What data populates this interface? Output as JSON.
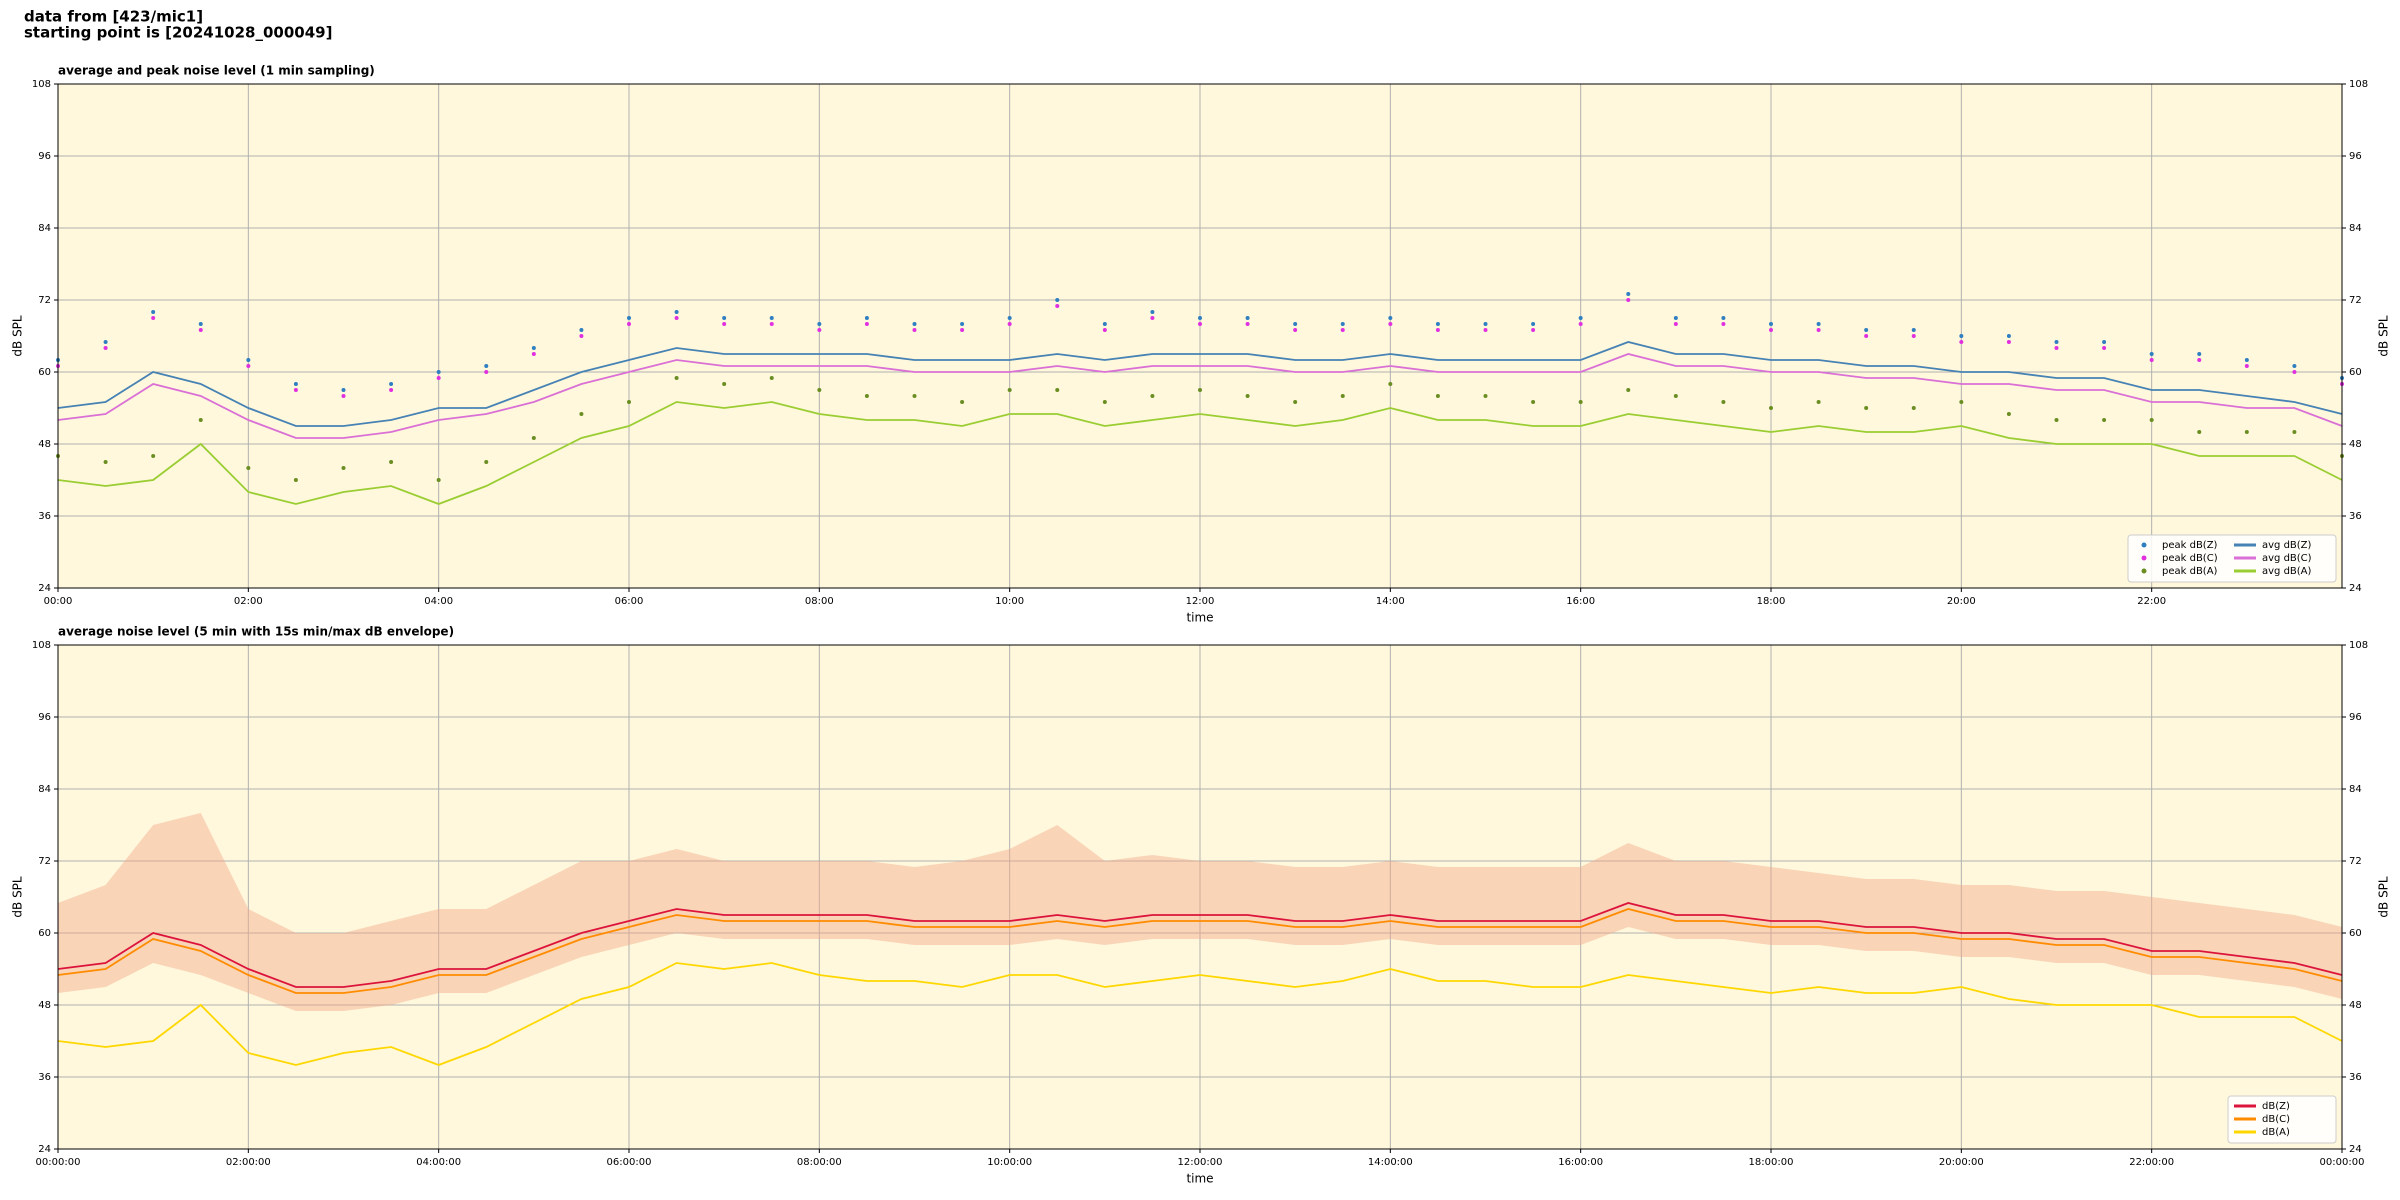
{
  "header": {
    "lines": [
      "data from [423/mic1]",
      "starting point is [20241028_000049]"
    ]
  },
  "chart_data": [
    {
      "type": "line",
      "title": "average and peak noise level (1 min sampling)",
      "xlabel": "time",
      "ylabel": "dB SPL",
      "x": [
        0,
        0.5,
        1,
        1.5,
        2,
        2.5,
        3,
        3.5,
        4,
        4.5,
        5,
        5.5,
        6,
        6.5,
        7,
        7.5,
        8,
        8.5,
        9,
        9.5,
        10,
        10.5,
        11,
        11.5,
        12,
        12.5,
        13,
        13.5,
        14,
        14.5,
        15,
        15.5,
        16,
        16.5,
        17,
        17.5,
        18,
        18.5,
        19,
        19.5,
        20,
        20.5,
        21,
        21.5,
        22,
        22.5,
        23,
        23.5,
        24
      ],
      "xlim": [
        0,
        24
      ],
      "xticks": [
        {
          "value": 0,
          "label": "00:00"
        },
        {
          "value": 2,
          "label": "02:00"
        },
        {
          "value": 4,
          "label": "04:00"
        },
        {
          "value": 6,
          "label": "06:00"
        },
        {
          "value": 8,
          "label": "08:00"
        },
        {
          "value": 10,
          "label": "10:00"
        },
        {
          "value": 12,
          "label": "12:00"
        },
        {
          "value": 14,
          "label": "14:00"
        },
        {
          "value": 16,
          "label": "16:00"
        },
        {
          "value": 18,
          "label": "18:00"
        },
        {
          "value": 20,
          "label": "20:00"
        },
        {
          "value": 22,
          "label": "22:00"
        }
      ],
      "ylim": [
        24,
        108
      ],
      "yticks": [
        24,
        36,
        48,
        60,
        72,
        84,
        96,
        108
      ],
      "grid": true,
      "legend": "lower right",
      "legend_columns": 2,
      "series": [
        {
          "name": "peak dB(Z)",
          "type": "scatter",
          "color": "#2f7fc1",
          "values": [
            62,
            65,
            70,
            68,
            62,
            58,
            57,
            58,
            60,
            61,
            64,
            67,
            69,
            70,
            69,
            69,
            68,
            69,
            68,
            68,
            69,
            72,
            68,
            70,
            69,
            69,
            68,
            68,
            69,
            68,
            68,
            68,
            69,
            73,
            69,
            69,
            68,
            68,
            67,
            67,
            66,
            66,
            65,
            65,
            63,
            63,
            62,
            61,
            59
          ]
        },
        {
          "name": "peak dB(C)",
          "type": "scatter",
          "color": "#e030e0",
          "values": [
            61,
            64,
            69,
            67,
            61,
            57,
            56,
            57,
            59,
            60,
            63,
            66,
            68,
            69,
            68,
            68,
            67,
            68,
            67,
            67,
            68,
            71,
            67,
            69,
            68,
            68,
            67,
            67,
            68,
            67,
            67,
            67,
            68,
            72,
            68,
            68,
            67,
            67,
            66,
            66,
            65,
            65,
            64,
            64,
            62,
            62,
            61,
            60,
            58
          ]
        },
        {
          "name": "peak dB(A)",
          "type": "scatter",
          "color": "#6b8e23",
          "values": [
            46,
            45,
            46,
            52,
            44,
            42,
            44,
            45,
            42,
            45,
            49,
            53,
            55,
            59,
            58,
            59,
            57,
            56,
            56,
            55,
            57,
            57,
            55,
            56,
            57,
            56,
            55,
            56,
            58,
            56,
            56,
            55,
            55,
            57,
            56,
            55,
            54,
            55,
            54,
            54,
            55,
            53,
            52,
            52,
            52,
            50,
            50,
            50,
            46
          ]
        },
        {
          "name": "avg dB(Z)",
          "type": "line",
          "color": "#4682b4",
          "values": [
            54,
            55,
            60,
            58,
            54,
            51,
            51,
            52,
            54,
            54,
            57,
            60,
            62,
            64,
            63,
            63,
            63,
            63,
            62,
            62,
            62,
            63,
            62,
            63,
            63,
            63,
            62,
            62,
            63,
            62,
            62,
            62,
            62,
            65,
            63,
            63,
            62,
            62,
            61,
            61,
            60,
            60,
            59,
            59,
            57,
            57,
            56,
            55,
            53
          ]
        },
        {
          "name": "avg dB(C)",
          "type": "line",
          "color": "#da70d6",
          "values": [
            52,
            53,
            58,
            56,
            52,
            49,
            49,
            50,
            52,
            53,
            55,
            58,
            60,
            62,
            61,
            61,
            61,
            61,
            60,
            60,
            60,
            61,
            60,
            61,
            61,
            61,
            60,
            60,
            61,
            60,
            60,
            60,
            60,
            63,
            61,
            61,
            60,
            60,
            59,
            59,
            58,
            58,
            57,
            57,
            55,
            55,
            54,
            54,
            51
          ]
        },
        {
          "name": "avg dB(A)",
          "type": "line",
          "color": "#9acd32",
          "values": [
            42,
            41,
            42,
            48,
            40,
            38,
            40,
            41,
            38,
            41,
            45,
            49,
            51,
            55,
            54,
            55,
            53,
            52,
            52,
            51,
            53,
            53,
            51,
            52,
            53,
            52,
            51,
            52,
            54,
            52,
            52,
            51,
            51,
            53,
            52,
            51,
            50,
            51,
            50,
            50,
            51,
            49,
            48,
            48,
            48,
            46,
            46,
            46,
            42
          ]
        }
      ]
    },
    {
      "type": "line",
      "title": "average noise level (5 min with 15s min/max dB envelope)",
      "xlabel": "time",
      "ylabel": "dB SPL",
      "x": [
        0,
        0.5,
        1,
        1.5,
        2,
        2.5,
        3,
        3.5,
        4,
        4.5,
        5,
        5.5,
        6,
        6.5,
        7,
        7.5,
        8,
        8.5,
        9,
        9.5,
        10,
        10.5,
        11,
        11.5,
        12,
        12.5,
        13,
        13.5,
        14,
        14.5,
        15,
        15.5,
        16,
        16.5,
        17,
        17.5,
        18,
        18.5,
        19,
        19.5,
        20,
        20.5,
        21,
        21.5,
        22,
        22.5,
        23,
        23.5,
        24
      ],
      "xlim": [
        0,
        24
      ],
      "xticks": [
        {
          "value": 0,
          "label": "00:00:00"
        },
        {
          "value": 2,
          "label": "02:00:00"
        },
        {
          "value": 4,
          "label": "04:00:00"
        },
        {
          "value": 6,
          "label": "06:00:00"
        },
        {
          "value": 8,
          "label": "08:00:00"
        },
        {
          "value": 10,
          "label": "10:00:00"
        },
        {
          "value": 12,
          "label": "12:00:00"
        },
        {
          "value": 14,
          "label": "14:00:00"
        },
        {
          "value": 16,
          "label": "16:00:00"
        },
        {
          "value": 18,
          "label": "18:00:00"
        },
        {
          "value": 20,
          "label": "20:00:00"
        },
        {
          "value": 22,
          "label": "22:00:00"
        },
        {
          "value": 24,
          "label": "00:00:00"
        }
      ],
      "ylim": [
        24,
        108
      ],
      "yticks": [
        24,
        36,
        48,
        60,
        72,
        84,
        96,
        108
      ],
      "grid": true,
      "legend": "lower right",
      "legend_columns": 1,
      "envelope": {
        "color": "#f4a98a",
        "upper": [
          65,
          68,
          78,
          80,
          64,
          60,
          60,
          62,
          64,
          64,
          68,
          72,
          72,
          74,
          72,
          72,
          72,
          72,
          71,
          72,
          74,
          78,
          72,
          73,
          72,
          72,
          71,
          71,
          72,
          71,
          71,
          71,
          71,
          75,
          72,
          72,
          71,
          70,
          69,
          69,
          68,
          68,
          67,
          67,
          66,
          65,
          64,
          63,
          61
        ],
        "lower": [
          50,
          51,
          55,
          53,
          50,
          47,
          47,
          48,
          50,
          50,
          53,
          56,
          58,
          60,
          59,
          59,
          59,
          59,
          58,
          58,
          58,
          59,
          58,
          59,
          59,
          59,
          58,
          58,
          59,
          58,
          58,
          58,
          58,
          61,
          59,
          59,
          58,
          58,
          57,
          57,
          56,
          56,
          55,
          55,
          53,
          53,
          52,
          51,
          49
        ]
      },
      "series": [
        {
          "name": "dB(Z)",
          "type": "line",
          "color": "#dc143c",
          "values": [
            54,
            55,
            60,
            58,
            54,
            51,
            51,
            52,
            54,
            54,
            57,
            60,
            62,
            64,
            63,
            63,
            63,
            63,
            62,
            62,
            62,
            63,
            62,
            63,
            63,
            63,
            62,
            62,
            63,
            62,
            62,
            62,
            62,
            65,
            63,
            63,
            62,
            62,
            61,
            61,
            60,
            60,
            59,
            59,
            57,
            57,
            56,
            55,
            53
          ]
        },
        {
          "name": "dB(C)",
          "type": "line",
          "color": "#ff8c00",
          "values": [
            53,
            54,
            59,
            57,
            53,
            50,
            50,
            51,
            53,
            53,
            56,
            59,
            61,
            63,
            62,
            62,
            62,
            62,
            61,
            61,
            61,
            62,
            61,
            62,
            62,
            62,
            61,
            61,
            62,
            61,
            61,
            61,
            61,
            64,
            62,
            62,
            61,
            61,
            60,
            60,
            59,
            59,
            58,
            58,
            56,
            56,
            55,
            54,
            52
          ]
        },
        {
          "name": "dB(A)",
          "type": "line",
          "color": "#ffd700",
          "values": [
            42,
            41,
            42,
            48,
            40,
            38,
            40,
            41,
            38,
            41,
            45,
            49,
            51,
            55,
            54,
            55,
            53,
            52,
            52,
            51,
            53,
            53,
            51,
            52,
            53,
            52,
            51,
            52,
            54,
            52,
            52,
            51,
            51,
            53,
            52,
            51,
            50,
            51,
            50,
            50,
            51,
            49,
            48,
            48,
            48,
            46,
            46,
            46,
            42
          ]
        }
      ]
    }
  ]
}
